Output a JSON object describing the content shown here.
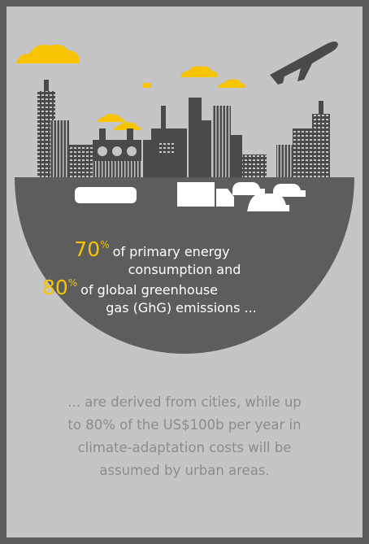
{
  "stat1": {
    "number": "70",
    "unit": "%",
    "lines": [
      "of primary energy",
      "consumption and"
    ]
  },
  "stat2": {
    "number": "80",
    "unit": "%",
    "lines": [
      "of global greenhouse",
      "gas (GhG) emissions ..."
    ]
  },
  "body": [
    "... are derived from cities, while up",
    "to 80% of the US$100b per year in",
    "climate-adaptation costs will be",
    "assumed by urban areas."
  ]
}
